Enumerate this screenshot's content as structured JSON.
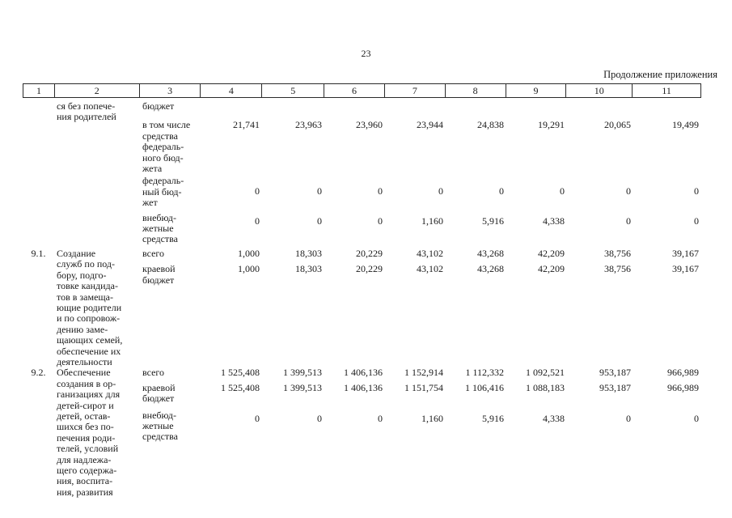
{
  "page": {
    "number": "23",
    "continuation_note": "Продолжение приложения"
  },
  "table": {
    "columns": [
      "1",
      "2",
      "3",
      "4",
      "5",
      "6",
      "7",
      "8",
      "9",
      "10",
      "11"
    ],
    "groups": [
      {
        "num": "",
        "name": "ся без попече-\nния родителей",
        "subrows": [
          {
            "label": "бюджет",
            "values": []
          },
          {
            "label": "в том числе\nсредства\nфедераль-\nного бюд-\nжета",
            "values": [
              "21,741",
              "23,963",
              "23,960",
              "23,944",
              "24,838",
              "19,291",
              "20,065",
              "19,499"
            ]
          },
          {
            "label": "федераль-\nный бюд-\nжет",
            "values": [
              "0",
              "0",
              "0",
              "0",
              "0",
              "0",
              "0",
              "0"
            ]
          },
          {
            "label": "внебюд-\nжетные\nсредства",
            "values": [
              "0",
              "0",
              "0",
              "1,160",
              "5,916",
              "4,338",
              "0",
              "0"
            ]
          }
        ]
      },
      {
        "num": "9.1.",
        "name": "Создание\nслужб по под-\nбору, подго-\nтовке кандида-\nтов в замеща-\nющие родители\nи по сопровож-\nдению заме-\nщающих семей,\nобеспечение их\nдеятельности",
        "subrows": [
          {
            "label": "всего",
            "values": [
              "1,000",
              "18,303",
              "20,229",
              "43,102",
              "43,268",
              "42,209",
              "38,756",
              "39,167"
            ]
          },
          {
            "label": "краевой\nбюджет",
            "values": [
              "1,000",
              "18,303",
              "20,229",
              "43,102",
              "43,268",
              "42,209",
              "38,756",
              "39,167"
            ]
          }
        ]
      },
      {
        "num": "9.2.",
        "name": "Обеспечение\nсоздания в ор-\nганизациях для\nдетей-сирот и\nдетей, остав-\nшихся без по-\nпечения роди-\nтелей, условий\nдля надлежа-\nщего содержа-\nния, воспита-\nния, развития",
        "subrows": [
          {
            "label": "всего",
            "values": [
              "1 525,408",
              "1 399,513",
              "1 406,136",
              "1 152,914",
              "1 112,332",
              "1 092,521",
              "953,187",
              "966,989"
            ]
          },
          {
            "label": "краевой\nбюджет",
            "values": [
              "1 525,408",
              "1 399,513",
              "1 406,136",
              "1 151,754",
              "1 106,416",
              "1 088,183",
              "953,187",
              "966,989"
            ]
          },
          {
            "label": "внебюд-\nжетные\nсредства",
            "values": [
              "0",
              "0",
              "0",
              "1,160",
              "5,916",
              "4,338",
              "0",
              "0"
            ]
          }
        ]
      }
    ]
  }
}
